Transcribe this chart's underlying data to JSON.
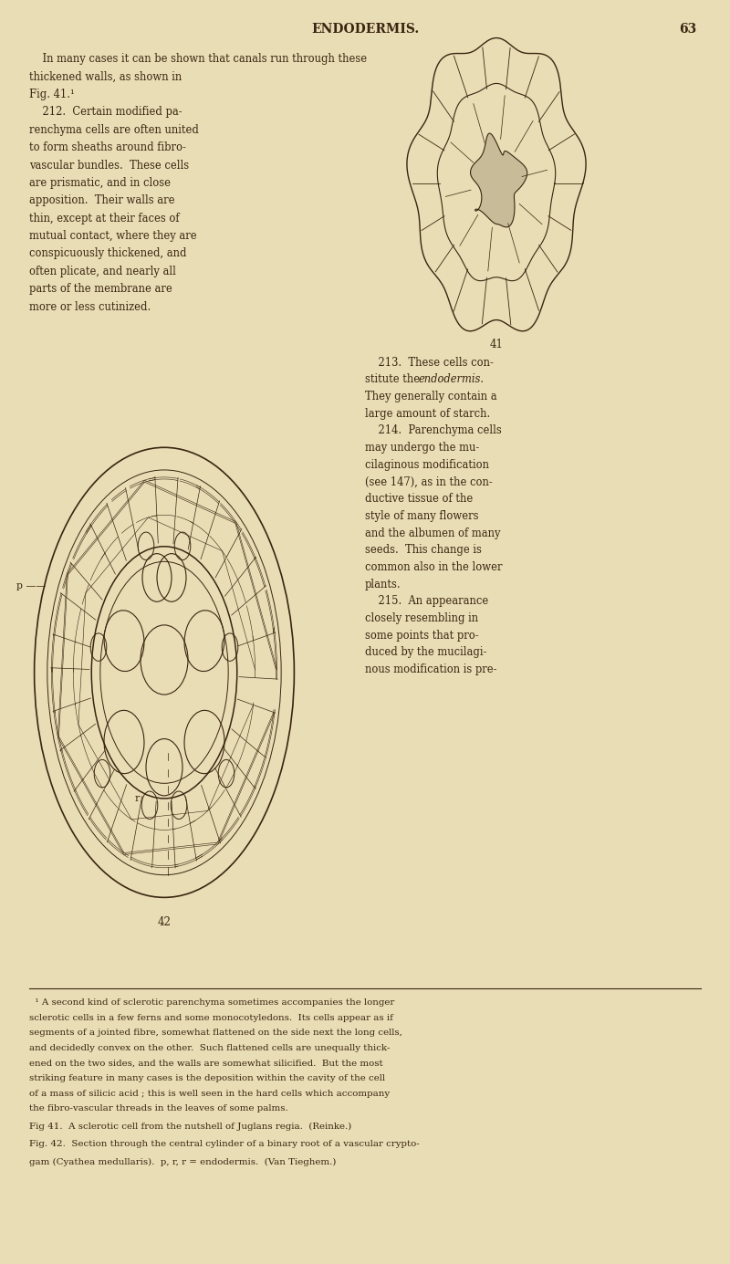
{
  "bg_color": "#e8ddb5",
  "text_color": "#3a2510",
  "page_width": 8.0,
  "page_height": 13.85,
  "header_text": "ENDODERMIS.",
  "page_number": "63",
  "footnote_text": [
    "  ¹ A second kind of sclerotic parenchyma sometimes accompanies the longer",
    "sclerotic cells in a few ferns and some monocotyledons.  Its cells appear as if",
    "segments of a jointed fibre, somewhat flattened on the side next the long cells,",
    "and decidedly convex on the other.  Such flattened cells are unequally thick-",
    "ened on the two sides, and the walls are somewhat silicified.  But the most",
    "striking feature in many cases is the deposition within the cavity of the cell",
    "of a mass of silicic acid ; this is well seen in the hard cells which accompany",
    "the fibro-vascular threads in the leaves of some palms."
  ],
  "fig_caption_41": "Fig 41.  A sclerotic cell from the nutshell of Juglans regia.  (Reinke.)",
  "fig_caption_42_1": "Fig. 42.  Section through the central cylinder of a binary root of a vascular crypto-",
  "fig_caption_42_2": "gam (Cyathea medullaris).  p, r, r = endodermis.  (Van Tieghem.)"
}
